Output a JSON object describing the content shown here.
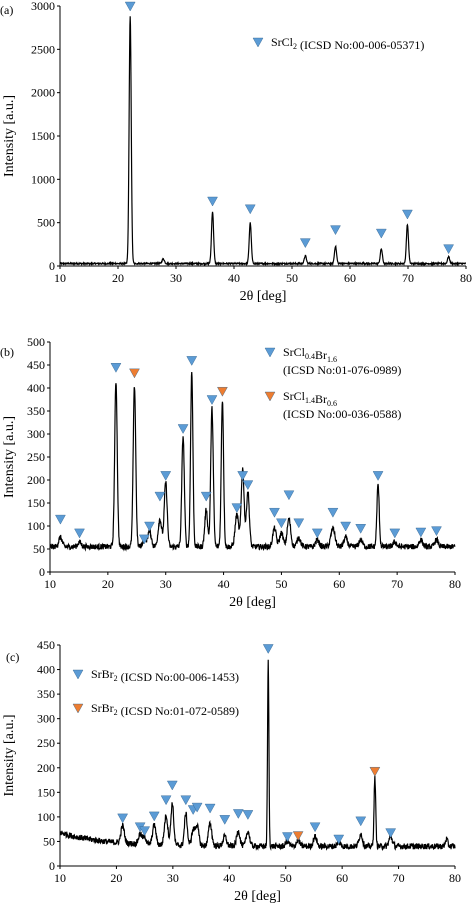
{
  "colors": {
    "blue_marker": "#5b9bd5",
    "orange_marker": "#ed7d31",
    "trace": "#000000"
  },
  "chart_data": [
    {
      "type": "line",
      "panel_label": "(a)",
      "xlabel": "2θ [deg]",
      "ylabel": "Intensity [a.u.]",
      "xlim": [
        10,
        80
      ],
      "ylim": [
        0,
        3000
      ],
      "xticks": [
        10,
        20,
        30,
        40,
        50,
        60,
        70,
        80
      ],
      "yticks": [
        0,
        500,
        1000,
        1500,
        2000,
        2500,
        3000
      ],
      "baseline": 28,
      "noise": 8,
      "peaks": [
        {
          "x": 22.1,
          "y": 2850,
          "w": 0.18
        },
        {
          "x": 27.8,
          "y": 55,
          "w": 0.2
        },
        {
          "x": 36.3,
          "y": 600,
          "w": 0.18
        },
        {
          "x": 42.8,
          "y": 470,
          "w": 0.18
        },
        {
          "x": 52.3,
          "y": 90,
          "w": 0.18
        },
        {
          "x": 57.5,
          "y": 200,
          "w": 0.18
        },
        {
          "x": 65.4,
          "y": 170,
          "w": 0.18
        },
        {
          "x": 69.9,
          "y": 450,
          "w": 0.18
        },
        {
          "x": 77.0,
          "y": 80,
          "w": 0.18
        }
      ],
      "markers": [
        {
          "x": 22.1,
          "y": 3000,
          "series": "blue"
        },
        {
          "x": 36.3,
          "y": 750,
          "series": "blue"
        },
        {
          "x": 42.8,
          "y": 660,
          "series": "blue"
        },
        {
          "x": 52.3,
          "y": 270,
          "series": "blue"
        },
        {
          "x": 57.5,
          "y": 420,
          "series": "blue"
        },
        {
          "x": 65.4,
          "y": 380,
          "series": "blue"
        },
        {
          "x": 69.9,
          "y": 600,
          "series": "blue"
        },
        {
          "x": 77.0,
          "y": 200,
          "series": "blue"
        }
      ],
      "legend": [
        {
          "series": "blue",
          "parts": [
            [
              "SrCl",
              "n"
            ],
            [
              "2",
              "sub"
            ],
            [
              " (ICSD No:00-006-05371)",
              "n"
            ]
          ]
        }
      ]
    },
    {
      "type": "line",
      "panel_label": "(b)",
      "xlabel": "2θ [deg]",
      "ylabel": "Intensity [a.u.]",
      "xlim": [
        10,
        80
      ],
      "ylim": [
        0,
        500
      ],
      "xticks": [
        10,
        20,
        30,
        40,
        50,
        60,
        70,
        80
      ],
      "yticks": [
        0,
        50,
        100,
        150,
        200,
        250,
        300,
        350,
        400,
        450,
        500
      ],
      "baseline": 55,
      "noise": 6,
      "peaks": [
        {
          "x": 11.8,
          "y": 20,
          "w": 0.3
        },
        {
          "x": 15.1,
          "y": 10,
          "w": 0.3
        },
        {
          "x": 21.4,
          "y": 360,
          "w": 0.22
        },
        {
          "x": 24.6,
          "y": 350,
          "w": 0.22
        },
        {
          "x": 26.3,
          "y": 15,
          "w": 0.3
        },
        {
          "x": 27.2,
          "y": 35,
          "w": 0.3
        },
        {
          "x": 29.0,
          "y": 60,
          "w": 0.3
        },
        {
          "x": 30.0,
          "y": 140,
          "w": 0.25
        },
        {
          "x": 33.0,
          "y": 240,
          "w": 0.22
        },
        {
          "x": 34.5,
          "y": 380,
          "w": 0.2
        },
        {
          "x": 37.0,
          "y": 80,
          "w": 0.25
        },
        {
          "x": 38.0,
          "y": 300,
          "w": 0.22
        },
        {
          "x": 39.8,
          "y": 320,
          "w": 0.2
        },
        {
          "x": 42.3,
          "y": 70,
          "w": 0.3
        },
        {
          "x": 43.3,
          "y": 170,
          "w": 0.25
        },
        {
          "x": 44.2,
          "y": 120,
          "w": 0.25
        },
        {
          "x": 48.8,
          "y": 40,
          "w": 0.3
        },
        {
          "x": 50.0,
          "y": 30,
          "w": 0.3
        },
        {
          "x": 51.3,
          "y": 60,
          "w": 0.3
        },
        {
          "x": 53.0,
          "y": 20,
          "w": 0.3
        },
        {
          "x": 56.2,
          "y": 15,
          "w": 0.3
        },
        {
          "x": 58.9,
          "y": 40,
          "w": 0.35
        },
        {
          "x": 61.1,
          "y": 20,
          "w": 0.3
        },
        {
          "x": 63.7,
          "y": 15,
          "w": 0.3
        },
        {
          "x": 66.7,
          "y": 135,
          "w": 0.2
        },
        {
          "x": 69.6,
          "y": 10,
          "w": 0.3
        },
        {
          "x": 74.1,
          "y": 15,
          "w": 0.3
        },
        {
          "x": 76.8,
          "y": 15,
          "w": 0.3
        }
      ],
      "markers": [
        {
          "x": 11.8,
          "y": 115,
          "series": "blue"
        },
        {
          "x": 15.1,
          "y": 85,
          "series": "blue"
        },
        {
          "x": 21.4,
          "y": 445,
          "series": "blue"
        },
        {
          "x": 24.6,
          "y": 433,
          "series": "orange"
        },
        {
          "x": 26.3,
          "y": 72,
          "series": "blue"
        },
        {
          "x": 27.2,
          "y": 100,
          "series": "blue"
        },
        {
          "x": 29.0,
          "y": 165,
          "series": "blue"
        },
        {
          "x": 30.0,
          "y": 210,
          "series": "blue"
        },
        {
          "x": 33.0,
          "y": 312,
          "series": "blue"
        },
        {
          "x": 34.5,
          "y": 460,
          "series": "blue"
        },
        {
          "x": 37.0,
          "y": 165,
          "series": "blue"
        },
        {
          "x": 38.0,
          "y": 375,
          "series": "blue"
        },
        {
          "x": 39.8,
          "y": 393,
          "series": "orange"
        },
        {
          "x": 42.3,
          "y": 140,
          "series": "blue"
        },
        {
          "x": 43.3,
          "y": 210,
          "series": "blue"
        },
        {
          "x": 44.2,
          "y": 190,
          "series": "blue"
        },
        {
          "x": 48.8,
          "y": 130,
          "series": "blue"
        },
        {
          "x": 50.0,
          "y": 107,
          "series": "blue"
        },
        {
          "x": 51.3,
          "y": 168,
          "series": "blue"
        },
        {
          "x": 53.0,
          "y": 107,
          "series": "blue"
        },
        {
          "x": 56.2,
          "y": 85,
          "series": "blue"
        },
        {
          "x": 58.9,
          "y": 130,
          "series": "blue"
        },
        {
          "x": 61.1,
          "y": 100,
          "series": "blue"
        },
        {
          "x": 63.7,
          "y": 95,
          "series": "blue"
        },
        {
          "x": 66.7,
          "y": 210,
          "series": "blue"
        },
        {
          "x": 69.6,
          "y": 85,
          "series": "blue"
        },
        {
          "x": 74.1,
          "y": 87,
          "series": "blue"
        },
        {
          "x": 76.8,
          "y": 90,
          "series": "blue"
        }
      ],
      "legend": [
        {
          "series": "blue",
          "parts": [
            [
              "SrCl",
              "n"
            ],
            [
              "0.4",
              "sub"
            ],
            [
              "Br",
              "n"
            ],
            [
              "1.6",
              "sub"
            ]
          ],
          "line2": "(ICSD No:01-076-0989)"
        },
        {
          "series": "orange",
          "parts": [
            [
              "SrCl",
              "n"
            ],
            [
              "1.4",
              "sub"
            ],
            [
              "Br",
              "n"
            ],
            [
              "0.6",
              "sub"
            ]
          ],
          "line2": "(ICSD No:00-036-0588)"
        }
      ]
    },
    {
      "type": "line",
      "panel_label": "(c)",
      "xlabel": "2θ [deg]",
      "ylabel": "Intensity [a.u.]",
      "xlim": [
        10,
        80
      ],
      "ylim": [
        0,
        450
      ],
      "xticks": [
        10,
        20,
        30,
        40,
        50,
        60,
        70,
        80
      ],
      "yticks": [
        0,
        50,
        100,
        150,
        200,
        250,
        300,
        350,
        400,
        450
      ],
      "baseline": 40,
      "start_bump": 28,
      "noise": 6,
      "peaks": [
        {
          "x": 21.1,
          "y": 35,
          "w": 0.3
        },
        {
          "x": 24.2,
          "y": 20,
          "w": 0.3
        },
        {
          "x": 25.0,
          "y": 15,
          "w": 0.3
        },
        {
          "x": 26.7,
          "y": 40,
          "w": 0.3
        },
        {
          "x": 28.8,
          "y": 60,
          "w": 0.3
        },
        {
          "x": 29.9,
          "y": 85,
          "w": 0.25
        },
        {
          "x": 32.3,
          "y": 65,
          "w": 0.25
        },
        {
          "x": 33.6,
          "y": 30,
          "w": 0.3
        },
        {
          "x": 34.3,
          "y": 40,
          "w": 0.3
        },
        {
          "x": 36.6,
          "y": 45,
          "w": 0.3
        },
        {
          "x": 39.2,
          "y": 20,
          "w": 0.3
        },
        {
          "x": 41.6,
          "y": 30,
          "w": 0.3
        },
        {
          "x": 43.3,
          "y": 30,
          "w": 0.3
        },
        {
          "x": 46.9,
          "y": 375,
          "w": 0.12
        },
        {
          "x": 50.3,
          "y": 10,
          "w": 0.3
        },
        {
          "x": 52.2,
          "y": 12,
          "w": 0.3
        },
        {
          "x": 55.2,
          "y": 20,
          "w": 0.3
        },
        {
          "x": 59.4,
          "y": 8,
          "w": 0.3
        },
        {
          "x": 63.3,
          "y": 25,
          "w": 0.3
        },
        {
          "x": 65.8,
          "y": 140,
          "w": 0.15
        },
        {
          "x": 68.6,
          "y": 20,
          "w": 0.3
        },
        {
          "x": 78.5,
          "y": 15,
          "w": 0.2
        }
      ],
      "markers": [
        {
          "x": 21.1,
          "y": 98,
          "series": "blue"
        },
        {
          "x": 24.2,
          "y": 80,
          "series": "blue"
        },
        {
          "x": 25.0,
          "y": 72,
          "series": "blue"
        },
        {
          "x": 26.7,
          "y": 102,
          "series": "blue"
        },
        {
          "x": 28.8,
          "y": 135,
          "series": "blue"
        },
        {
          "x": 29.9,
          "y": 165,
          "series": "blue"
        },
        {
          "x": 32.3,
          "y": 135,
          "series": "blue"
        },
        {
          "x": 33.6,
          "y": 115,
          "series": "blue"
        },
        {
          "x": 34.3,
          "y": 120,
          "series": "blue"
        },
        {
          "x": 36.6,
          "y": 118,
          "series": "blue"
        },
        {
          "x": 39.2,
          "y": 95,
          "series": "blue"
        },
        {
          "x": 41.6,
          "y": 107,
          "series": "blue"
        },
        {
          "x": 43.3,
          "y": 105,
          "series": "blue"
        },
        {
          "x": 46.9,
          "y": 443,
          "series": "blue"
        },
        {
          "x": 50.3,
          "y": 60,
          "series": "blue"
        },
        {
          "x": 52.2,
          "y": 62,
          "series": "orange"
        },
        {
          "x": 55.2,
          "y": 80,
          "series": "blue"
        },
        {
          "x": 59.4,
          "y": 55,
          "series": "blue"
        },
        {
          "x": 63.3,
          "y": 92,
          "series": "blue"
        },
        {
          "x": 65.8,
          "y": 193,
          "series": "orange"
        },
        {
          "x": 68.6,
          "y": 68,
          "series": "blue"
        }
      ],
      "legend": [
        {
          "series": "blue",
          "parts": [
            [
              "SrBr",
              "n"
            ],
            [
              "2",
              "sub"
            ],
            [
              " (ICSD No:00-006-1453)",
              "n"
            ]
          ]
        },
        {
          "series": "orange",
          "parts": [
            [
              "SrBr",
              "n"
            ],
            [
              "2",
              "sub"
            ],
            [
              " (ICSD No:01-072-0589)",
              "n"
            ]
          ]
        }
      ]
    }
  ]
}
